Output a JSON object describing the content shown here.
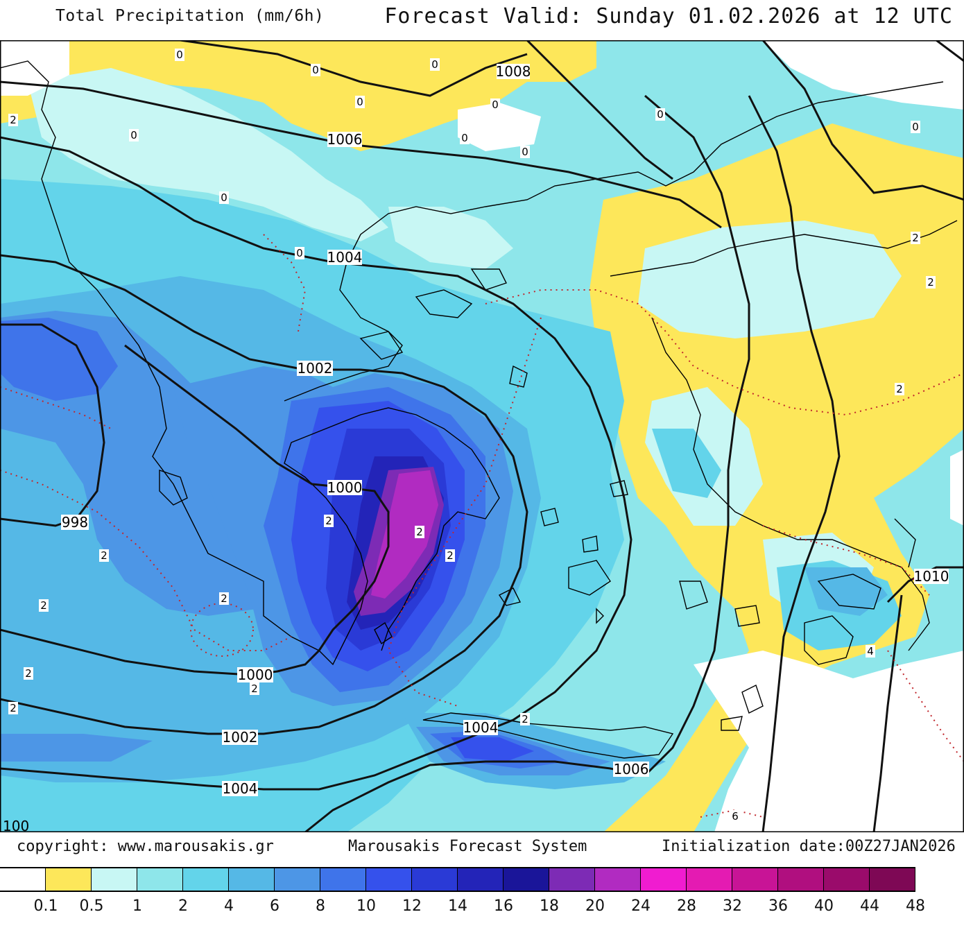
{
  "header": {
    "title": "Total Precipitation (mm/6h)",
    "valid": "Forecast Valid:  Sunday 01.02.2026 at 12 UTC"
  },
  "footer": {
    "copyright": "copyright: www.marousakis.gr",
    "system": "Marousakis Forecast System",
    "init": "Initialization date:00Z27JAN2026"
  },
  "legend": {
    "labels": [
      "0.1",
      "0.5",
      "1",
      "2",
      "4",
      "6",
      "8",
      "10",
      "12",
      "14",
      "16",
      "18",
      "20",
      "24",
      "28",
      "32",
      "36",
      "40",
      "44",
      "48"
    ],
    "colors": [
      "#ffffff",
      "#fde75a",
      "#c8f7f4",
      "#8ee6ea",
      "#63d4ea",
      "#55b8e6",
      "#4d96e6",
      "#3f74ea",
      "#3551ec",
      "#2a3ad6",
      "#2324b8",
      "#1a1599",
      "#7d2bb5",
      "#b12bc1",
      "#f01cd0",
      "#e41bb2",
      "#c81496",
      "#b00f7f",
      "#9a0b6b",
      "#7e0855"
    ]
  },
  "isobars": [
    {
      "value": "1008"
    },
    {
      "value": "1006"
    },
    {
      "value": "1004"
    },
    {
      "value": "1002"
    },
    {
      "value": "1000"
    },
    {
      "value": "998"
    },
    {
      "value": "1000"
    },
    {
      "value": "1002"
    },
    {
      "value": "1004"
    },
    {
      "value": "1004"
    },
    {
      "value": "1006"
    },
    {
      "value": "1010"
    },
    {
      "value": "100"
    }
  ],
  "precip_labels": [
    "0",
    "0",
    "0",
    "0",
    "0",
    "0",
    "0",
    "0",
    "0",
    "0",
    "0",
    "0",
    "2",
    "2",
    "2",
    "2",
    "2",
    "2",
    "2",
    "2",
    "2",
    "2",
    "2",
    "2",
    "2",
    "2",
    "4",
    "6"
  ]
}
